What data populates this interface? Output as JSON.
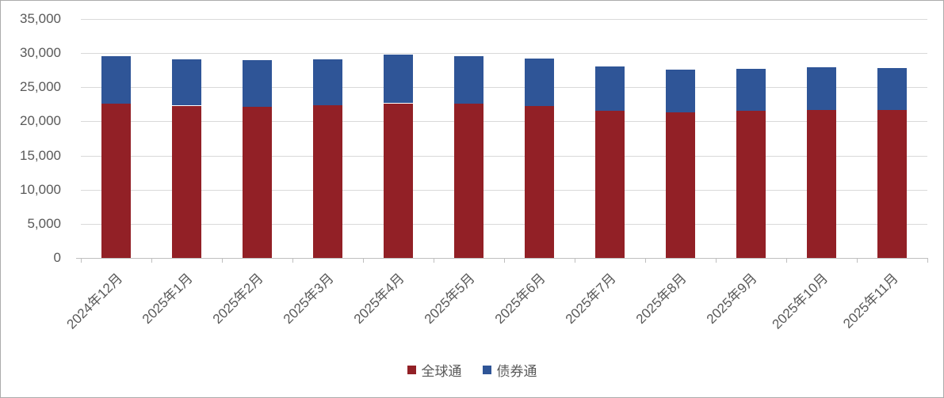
{
  "chart_data": {
    "type": "bar",
    "stacked": true,
    "title": "",
    "xlabel": "",
    "ylabel": "",
    "categories": [
      "2024年12月",
      "2025年1月",
      "2025年2月",
      "2025年3月",
      "2025年4月",
      "2025年5月",
      "2025年6月",
      "2025年7月",
      "2025年8月",
      "2025年9月",
      "2025年10月",
      "2025年11月"
    ],
    "series": [
      {
        "name": "全球通",
        "color": "#922026",
        "values": [
          22600,
          22300,
          22150,
          22350,
          22650,
          22700,
          22300,
          21500,
          21300,
          21500,
          21700,
          21650
        ]
      },
      {
        "name": "债券通",
        "color": "#2f5597",
        "values": [
          6900,
          6750,
          6850,
          6700,
          7100,
          6900,
          6950,
          6500,
          6300,
          6200,
          6250,
          6200
        ]
      }
    ],
    "ylim": [
      0,
      35000
    ],
    "y_tick_interval": 5000,
    "y_tick_labels": [
      "0",
      "5,000",
      "10,000",
      "15,000",
      "20,000",
      "25,000",
      "30,000",
      "35,000"
    ],
    "grid": true,
    "legend_position": "bottom"
  },
  "colors": {
    "axis_text": "#595959",
    "gridline": "#d9d9d9",
    "axis_line": "#bfbfbf",
    "border": "#ababab",
    "background": "#ffffff"
  }
}
